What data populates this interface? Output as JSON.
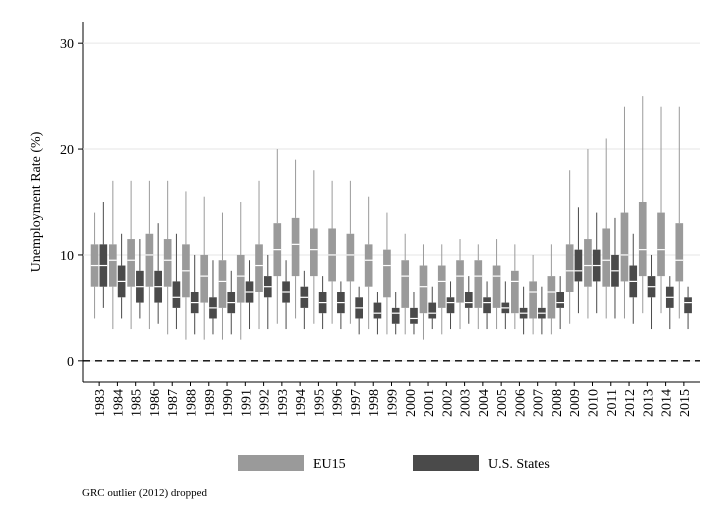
{
  "chart_data": {
    "type": "box",
    "y_label": "Unemployment Rate (%)",
    "note": "GRC outlier (2012) dropped",
    "categories": [
      "1983",
      "1984",
      "1985",
      "1986",
      "1987",
      "1988",
      "1989",
      "1990",
      "1991",
      "1992",
      "1993",
      "1994",
      "1995",
      "1996",
      "1997",
      "1998",
      "1999",
      "2000",
      "2001",
      "2002",
      "2003",
      "2004",
      "2005",
      "2006",
      "2007",
      "2008",
      "2009",
      "2010",
      "2011",
      "2012",
      "2013",
      "2014",
      "2015"
    ],
    "ylim": [
      -2,
      32
    ],
    "yticks": [
      0,
      10,
      20,
      30
    ],
    "grid": true,
    "reference_line": 0,
    "series": [
      {
        "name": "EU15",
        "color": "#9a9a9a",
        "min": [
          4,
          3,
          3,
          3,
          2.5,
          2,
          2,
          2,
          2,
          3,
          3.5,
          4,
          3.5,
          3.5,
          3.5,
          3,
          2.5,
          2.5,
          2,
          2.5,
          3,
          3,
          3,
          3,
          2.5,
          2.5,
          3.5,
          4,
          4,
          4,
          4.5,
          4.5,
          4
        ],
        "q1": [
          7,
          7,
          7,
          7,
          7,
          6,
          5.5,
          5,
          5.5,
          6.5,
          8,
          8,
          8,
          7.5,
          7.5,
          7,
          6,
          5,
          4.5,
          5,
          5.5,
          5,
          5,
          4.5,
          4,
          4,
          6.5,
          7,
          7,
          7.5,
          8,
          8,
          7.5
        ],
        "median": [
          9,
          9.5,
          9.5,
          10,
          9.5,
          8.5,
          8,
          7.5,
          8,
          9,
          10.5,
          11,
          10.5,
          10,
          10,
          9.5,
          9,
          8,
          7,
          7.5,
          8,
          8,
          8,
          7.5,
          6.5,
          6.5,
          8.5,
          9,
          9.5,
          10,
          10.5,
          10.5,
          9.5
        ],
        "q3": [
          11,
          11,
          11.5,
          12,
          11.5,
          11,
          10,
          9.5,
          10,
          11,
          13,
          13.5,
          12.5,
          12.5,
          12,
          11,
          10.5,
          9.5,
          9,
          9,
          9.5,
          9.5,
          9,
          8.5,
          7.5,
          8,
          11,
          11.5,
          12.5,
          14,
          15,
          14,
          13
        ],
        "max": [
          14,
          17,
          17,
          17,
          17,
          16,
          15.5,
          14,
          15,
          17,
          20,
          19,
          18,
          17,
          17,
          15.5,
          14,
          12,
          11,
          11,
          11.5,
          11,
          11.5,
          11,
          10,
          11,
          18,
          20,
          21,
          24,
          25,
          24,
          24
        ]
      },
      {
        "name": "U.S. States",
        "color": "#4a4a4a",
        "min": [
          5,
          4,
          4,
          3.5,
          3,
          2.5,
          2.5,
          2.5,
          3,
          3,
          3,
          3,
          3,
          3,
          2.5,
          2.5,
          2.5,
          2.5,
          3,
          3,
          3.5,
          3,
          3,
          2.5,
          2.5,
          3,
          4.5,
          4.5,
          4,
          3.5,
          3,
          3,
          3
        ],
        "q1": [
          7,
          6,
          5.5,
          5.5,
          5,
          4.5,
          4,
          4.5,
          5.5,
          6,
          5.5,
          5,
          4.5,
          4.5,
          4,
          4,
          3.5,
          3.5,
          4,
          4.5,
          5,
          4.5,
          4.5,
          4,
          4,
          5,
          7.5,
          7.5,
          7,
          6,
          6,
          5,
          4.5
        ],
        "median": [
          9,
          7.5,
          7,
          7,
          6,
          5.5,
          5,
          5.5,
          6.5,
          7,
          6.5,
          6,
          5.5,
          5.5,
          5,
          4.5,
          4.5,
          4,
          4.5,
          5.5,
          5.5,
          5.5,
          5,
          4.5,
          4.5,
          5.5,
          8.5,
          9,
          8.5,
          7.5,
          7,
          6,
          5.5
        ],
        "q3": [
          11,
          9,
          8.5,
          8.5,
          7.5,
          6.5,
          6,
          6.5,
          7.5,
          8,
          7.5,
          7,
          6.5,
          6.5,
          6,
          5.5,
          5,
          5,
          5.5,
          6,
          6.5,
          6,
          5.5,
          5,
          5,
          6.5,
          10.5,
          10.5,
          10,
          9,
          8,
          7,
          6
        ],
        "max": [
          15,
          12,
          11.5,
          13,
          12,
          10,
          9.5,
          8.5,
          9.5,
          10,
          9.5,
          8.5,
          8,
          7.5,
          7,
          6.5,
          6.5,
          6.5,
          7,
          7.5,
          8,
          7.5,
          7.5,
          7,
          7,
          8,
          14.5,
          14,
          13.5,
          12,
          10,
          8,
          7
        ]
      }
    ]
  }
}
